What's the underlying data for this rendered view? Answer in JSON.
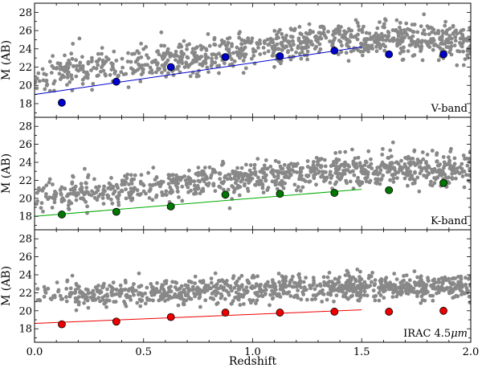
{
  "chart_data": [
    {
      "type": "scatter",
      "panel": "top",
      "band_label": "V-band",
      "ylabel": "M (AB)",
      "xlabel": "",
      "xlim": [
        0.0,
        2.0
      ],
      "ylim": [
        16.5,
        29.0
      ],
      "yticks": [
        "18",
        "20",
        "22",
        "24",
        "26",
        "28"
      ],
      "point_color": "#0000cc",
      "line_color": "#0000cc",
      "fit_line": {
        "x": [
          0.0,
          1.5
        ],
        "y": [
          19.0,
          24.2
        ]
      },
      "cloud": {
        "x_min": 0.0,
        "x_max": 2.0,
        "y_start": 21.0,
        "y_slope": 3.0,
        "y_cap": 25.0,
        "spread": 1.8,
        "count": 900,
        "seed": 11
      },
      "binned_points": {
        "x": [
          0.125,
          0.375,
          0.625,
          0.875,
          1.125,
          1.375,
          1.625,
          1.875
        ],
        "y": [
          18.1,
          20.4,
          22.0,
          23.1,
          23.2,
          23.8,
          23.4,
          23.4
        ]
      }
    },
    {
      "type": "scatter",
      "panel": "middle",
      "band_label": "K-band",
      "ylabel": "M (AB)",
      "xlabel": "",
      "xlim": [
        0.0,
        2.0
      ],
      "ylim": [
        16.5,
        29.0
      ],
      "yticks": [
        "18",
        "20",
        "22",
        "24",
        "26",
        "28"
      ],
      "point_color": "#007700",
      "line_color": "#00aa00",
      "fit_line": {
        "x": [
          0.0,
          1.5
        ],
        "y": [
          18.0,
          21.0
        ]
      },
      "cloud": {
        "x_min": 0.0,
        "x_max": 2.0,
        "y_start": 20.3,
        "y_slope": 2.0,
        "y_cap": 23.2,
        "spread": 1.6,
        "count": 900,
        "seed": 23
      },
      "binned_points": {
        "x": [
          0.125,
          0.375,
          0.625,
          0.875,
          1.125,
          1.375,
          1.625,
          1.875
        ],
        "y": [
          18.2,
          18.5,
          19.1,
          20.4,
          20.5,
          20.6,
          20.9,
          21.7
        ]
      }
    },
    {
      "type": "scatter",
      "panel": "bottom",
      "band_label": "IRAC 4.5",
      "band_label_unit": "μm",
      "ylabel": "M (AB)",
      "xlabel": "Redshift",
      "xlim": [
        0.0,
        2.0
      ],
      "ylim": [
        16.5,
        29.0
      ],
      "yticks": [
        "18",
        "20",
        "22",
        "24",
        "26",
        "28"
      ],
      "xticks": [
        "0.0",
        "0.5",
        "1.0",
        "1.5",
        "2.0"
      ],
      "point_color": "#ee0000",
      "line_color": "#ee0000",
      "fit_line": {
        "x": [
          0.0,
          1.5
        ],
        "y": [
          18.6,
          20.1
        ]
      },
      "cloud": {
        "x_min": 0.0,
        "x_max": 2.0,
        "y_start": 21.6,
        "y_slope": 0.8,
        "y_cap": 22.6,
        "spread": 1.3,
        "count": 900,
        "seed": 37
      },
      "binned_points": {
        "x": [
          0.125,
          0.375,
          0.625,
          0.875,
          1.125,
          1.375,
          1.625,
          1.875
        ],
        "y": [
          18.5,
          18.8,
          19.3,
          19.8,
          19.8,
          19.9,
          19.9,
          20.0
        ]
      }
    }
  ],
  "colors": {
    "cloud": "#888888",
    "frame": "#000000",
    "marker_edge": "#000000"
  }
}
